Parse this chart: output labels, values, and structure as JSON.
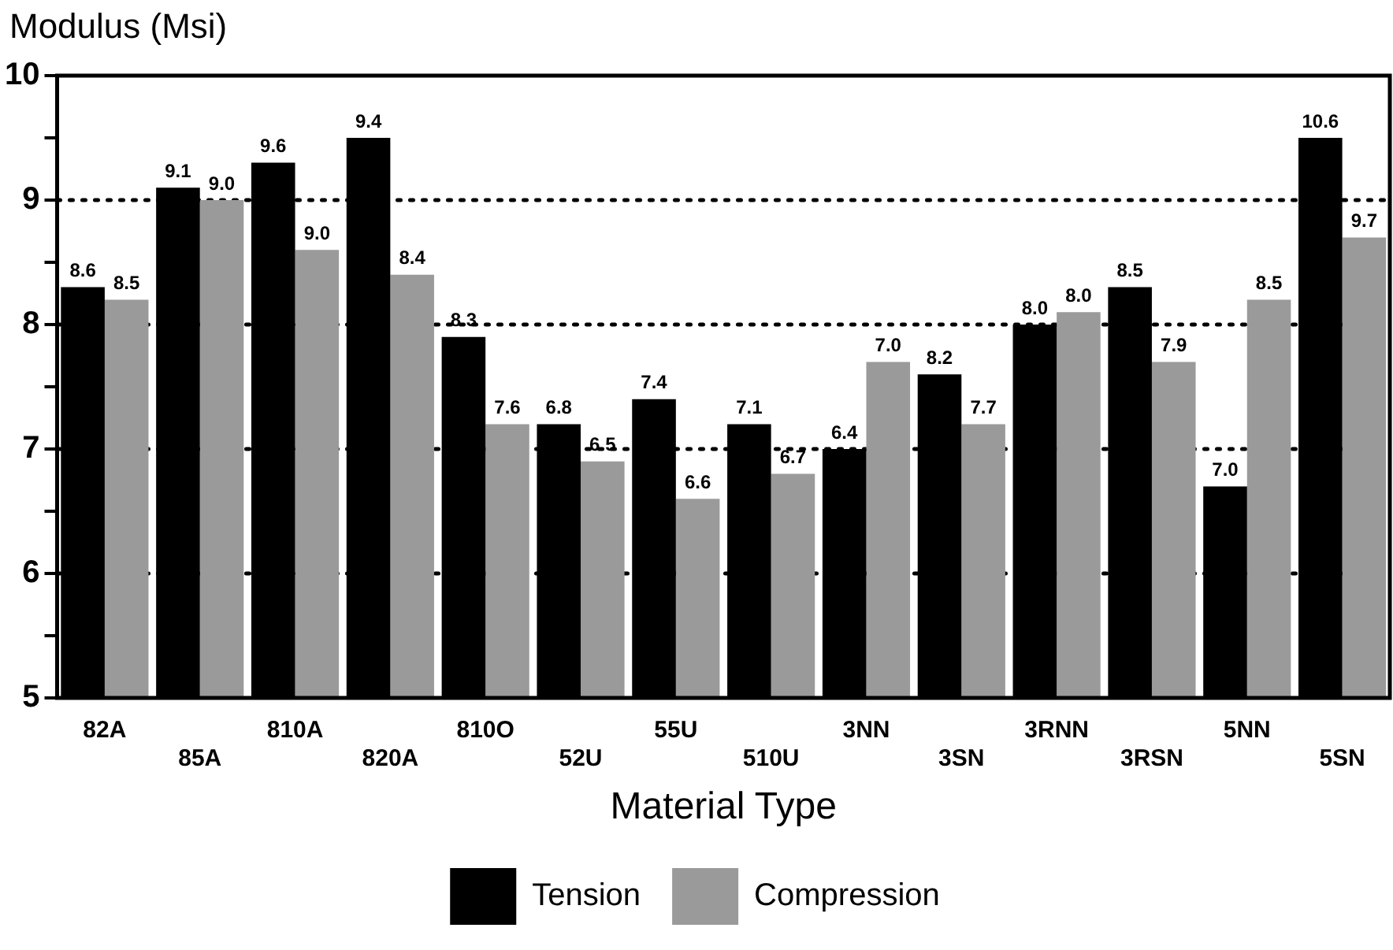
{
  "chart_data": {
    "type": "bar",
    "ylabel": "Modulus (Msi)",
    "xlabel": "Material Type",
    "categories": [
      "82A",
      "85A",
      "810A",
      "820A",
      "810O",
      "52U",
      "55U",
      "510U",
      "3NN",
      "3SN",
      "3RNN",
      "3RSN",
      "5NN",
      "5SN"
    ],
    "series": [
      {
        "name": "Tension",
        "color": "#000000",
        "values": [
          8.3,
          9.1,
          9.3,
          9.5,
          7.9,
          7.2,
          7.4,
          7.2,
          7.0,
          7.6,
          8.0,
          8.3,
          6.7,
          9.5
        ]
      },
      {
        "name": "Compression",
        "color": "#9a9a9a",
        "values": [
          8.2,
          9.0,
          8.6,
          8.4,
          7.2,
          6.9,
          6.6,
          6.8,
          7.7,
          7.2,
          8.1,
          7.7,
          8.2,
          8.7
        ]
      }
    ],
    "annotations": [
      {
        "text": "8.6",
        "x": "82A",
        "y": 8.3
      },
      {
        "text": "8.5",
        "x": "82A",
        "y": 8.2
      },
      {
        "text": "9.1",
        "x": "85A",
        "y": 9.1
      },
      {
        "text": "9.0",
        "x": "85A",
        "y": 9.0
      },
      {
        "text": "9.6",
        "x": "810A",
        "y": 9.3
      },
      {
        "text": "9.0",
        "x": "810A",
        "y": 8.6
      },
      {
        "text": "9.4",
        "x": "820A",
        "y": 9.5
      },
      {
        "text": "8.4",
        "x": "820A",
        "y": 8.4
      },
      {
        "text": "8.3",
        "x": "810O",
        "y": 7.9
      },
      {
        "text": "7.6",
        "x": "810O",
        "y": 7.2
      },
      {
        "text": "6.8",
        "x": "52U",
        "y": 7.2
      },
      {
        "text": "6.5",
        "x": "52U",
        "y": 6.9
      },
      {
        "text": "7.4",
        "x": "55U",
        "y": 7.4
      },
      {
        "text": "6.6",
        "x": "55U",
        "y": 6.6
      },
      {
        "text": "7.1",
        "x": "510U",
        "y": 7.2
      },
      {
        "text": "6.7",
        "x": "510U",
        "y": 6.8
      },
      {
        "text": "6.4",
        "x": "3NN",
        "y": 7.0
      },
      {
        "text": "7.0",
        "x": "3NN",
        "y": 7.7
      },
      {
        "text": "8.2",
        "x": "3SN",
        "y": 7.6
      },
      {
        "text": "7.7",
        "x": "3SN",
        "y": 7.2
      },
      {
        "text": "8.0",
        "x": "3RNN",
        "y": 8.0
      },
      {
        "text": "8.0",
        "x": "3RNN",
        "y": 8.1
      },
      {
        "text": "8.5",
        "x": "3RSN",
        "y": 8.3
      },
      {
        "text": "7.9",
        "x": "3RSN",
        "y": 7.7
      },
      {
        "text": "7.0",
        "x": "5NN",
        "y": 6.7
      },
      {
        "text": "8.5",
        "x": "5NN",
        "y": 8.2
      },
      {
        "text": "10.6",
        "x": "5SN",
        "y": 9.5
      },
      {
        "text": "9.7",
        "x": "5SN",
        "y": 8.7
      }
    ],
    "ylim": [
      5,
      10
    ],
    "yticks": [
      5,
      {
        "value": 5.5,
        "label": null
      },
      6,
      {
        "value": 6.5,
        "label": null
      },
      7,
      {
        "value": 7.5,
        "label": null
      },
      8,
      {
        "value": 8.5,
        "label": null
      },
      9,
      {
        "value": 9.5,
        "label": null
      },
      10
    ],
    "grid": "y",
    "line_style": "dotted",
    "legend": "bottom"
  }
}
